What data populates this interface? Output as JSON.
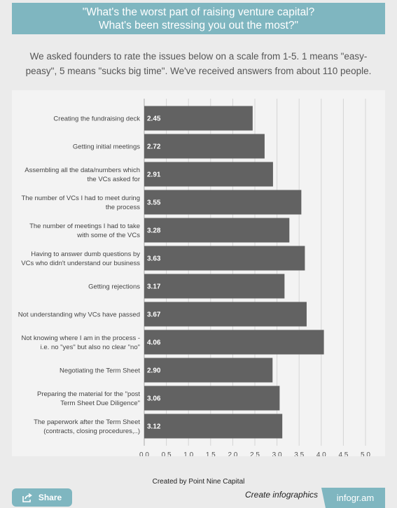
{
  "header": {
    "title_line1": "\"What's the worst part of raising venture capital?",
    "title_line2": "What's been stressing you out the most?\""
  },
  "intro": {
    "text": "We asked founders to rate the issues below on a scale from 1-5. 1 means \"easy-peasy\", 5 means \"sucks big time\". We've received answers from about 110 people."
  },
  "chart_data": {
    "type": "bar",
    "orientation": "horizontal",
    "categories": [
      [
        "Creating the fundraising deck"
      ],
      [
        "Getting initial meetings"
      ],
      [
        "Assembling all the data/numbers which",
        "the VCs asked for"
      ],
      [
        "The number of VCs I had to meet during",
        "the process"
      ],
      [
        "The number of meetings I had to take",
        "with some of the VCs"
      ],
      [
        "Having to answer dumb questions by",
        "VCs who didn't understand our business"
      ],
      [
        "Getting rejections"
      ],
      [
        "Not understanding why VCs have passed"
      ],
      [
        "Not knowing where I am in the process -",
        "i.e. no \"yes\" but also no clear \"no\""
      ],
      [
        "Negotiating the Term Sheet"
      ],
      [
        "Preparing the material for the \"post",
        "Term Sheet Due Diligence\""
      ],
      [
        "The paperwork after the Term Sheet",
        "(contracts, closing procedures,..)"
      ]
    ],
    "values": [
      2.45,
      2.72,
      2.91,
      3.55,
      3.28,
      3.63,
      3.17,
      3.67,
      4.06,
      2.9,
      3.06,
      3.12
    ],
    "value_labels": [
      "2.45",
      "2.72",
      "2.91",
      "3.55",
      "3.28",
      "3.63",
      "3.17",
      "3.67",
      "4.06",
      "2.90",
      "3.06",
      "3.12"
    ],
    "x_ticks": [
      "0.0",
      "0.5",
      "1.0",
      "1.5",
      "2.0",
      "2.5",
      "3.0",
      "3.5",
      "4.0",
      "4.5",
      "5.0"
    ],
    "xlim": [
      0,
      5.0
    ],
    "grid": true,
    "bar_color": "#626262",
    "grid_color": "#d4d4d4"
  },
  "footer": {
    "credit": "Created by Point Nine Capital",
    "share_label": "Share",
    "create_label": "Create infographics",
    "brand_label": "infogr.am"
  },
  "colors": {
    "accent": "#7fb6c0",
    "background": "#ebebeb",
    "panel": "#f3f3f3"
  }
}
